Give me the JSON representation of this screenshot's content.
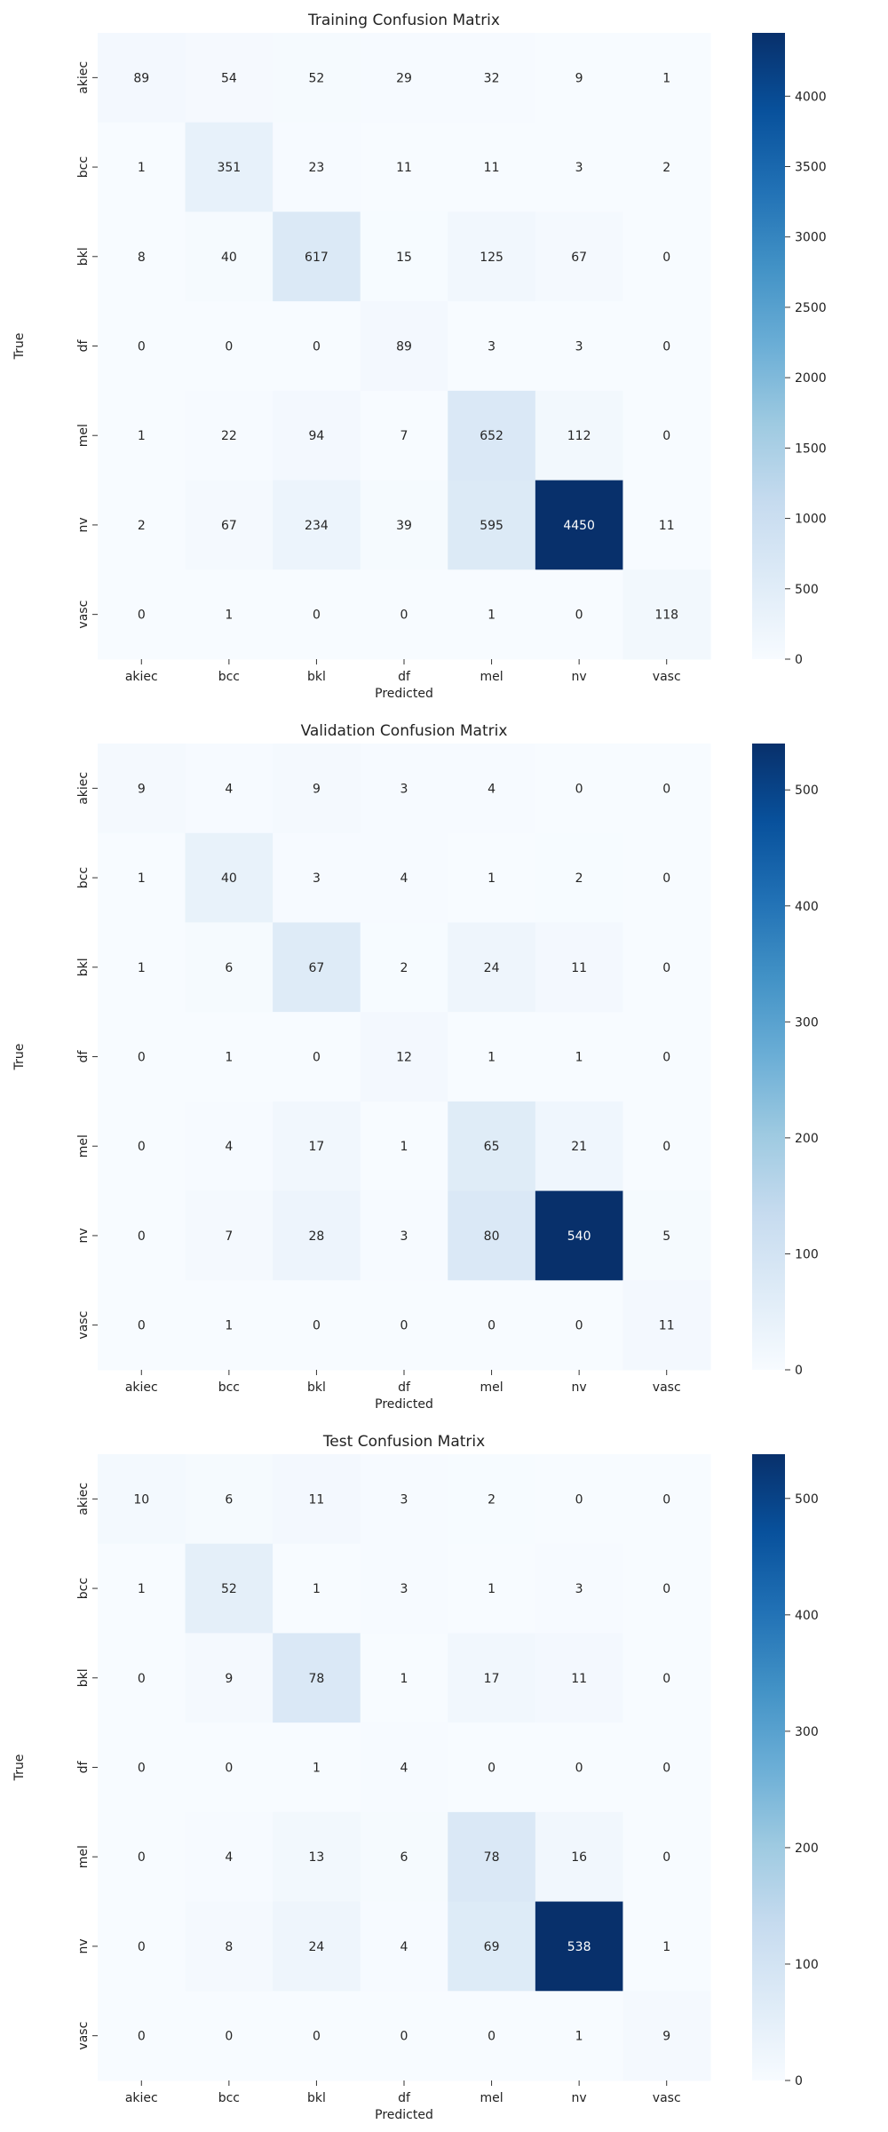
{
  "chart_data": [
    {
      "type": "heatmap",
      "title": "Training Confusion Matrix",
      "xlabel": "Predicted",
      "ylabel": "True",
      "x_categories": [
        "akiec",
        "bcc",
        "bkl",
        "df",
        "mel",
        "nv",
        "vasc"
      ],
      "y_categories": [
        "akiec",
        "bcc",
        "bkl",
        "df",
        "mel",
        "nv",
        "vasc"
      ],
      "values": [
        [
          89,
          54,
          52,
          29,
          32,
          9,
          1
        ],
        [
          1,
          351,
          23,
          11,
          11,
          3,
          2
        ],
        [
          8,
          40,
          617,
          15,
          125,
          67,
          0
        ],
        [
          0,
          0,
          0,
          89,
          3,
          3,
          0
        ],
        [
          1,
          22,
          94,
          7,
          652,
          112,
          0
        ],
        [
          2,
          67,
          234,
          39,
          595,
          4450,
          11
        ],
        [
          0,
          1,
          0,
          0,
          1,
          0,
          118
        ]
      ],
      "colorbar": {
        "min": 0,
        "max": 4450,
        "ticks": [
          0,
          500,
          1000,
          1500,
          2000,
          2500,
          3000,
          3500,
          4000
        ]
      },
      "colormap": [
        "#f7fbff",
        "#deebf7",
        "#c6dbef",
        "#9ecae1",
        "#6baed6",
        "#4292c6",
        "#2171b5",
        "#08519c",
        "#08306b"
      ]
    },
    {
      "type": "heatmap",
      "title": "Validation Confusion Matrix",
      "xlabel": "Predicted",
      "ylabel": "True",
      "x_categories": [
        "akiec",
        "bcc",
        "bkl",
        "df",
        "mel",
        "nv",
        "vasc"
      ],
      "y_categories": [
        "akiec",
        "bcc",
        "bkl",
        "df",
        "mel",
        "nv",
        "vasc"
      ],
      "values": [
        [
          9,
          4,
          9,
          3,
          4,
          0,
          0
        ],
        [
          1,
          40,
          3,
          4,
          1,
          2,
          0
        ],
        [
          1,
          6,
          67,
          2,
          24,
          11,
          0
        ],
        [
          0,
          1,
          0,
          12,
          1,
          1,
          0
        ],
        [
          0,
          4,
          17,
          1,
          65,
          21,
          0
        ],
        [
          0,
          7,
          28,
          3,
          80,
          540,
          5
        ],
        [
          0,
          1,
          0,
          0,
          0,
          0,
          11
        ]
      ],
      "colorbar": {
        "min": 0,
        "max": 540,
        "ticks": [
          0,
          100,
          200,
          300,
          400,
          500
        ]
      },
      "colormap": [
        "#f7fbff",
        "#deebf7",
        "#c6dbef",
        "#9ecae1",
        "#6baed6",
        "#4292c6",
        "#2171b5",
        "#08519c",
        "#08306b"
      ]
    },
    {
      "type": "heatmap",
      "title": "Test Confusion Matrix",
      "xlabel": "Predicted",
      "ylabel": "True",
      "x_categories": [
        "akiec",
        "bcc",
        "bkl",
        "df",
        "mel",
        "nv",
        "vasc"
      ],
      "y_categories": [
        "akiec",
        "bcc",
        "bkl",
        "df",
        "mel",
        "nv",
        "vasc"
      ],
      "values": [
        [
          10,
          6,
          11,
          3,
          2,
          0,
          0
        ],
        [
          1,
          52,
          1,
          3,
          1,
          3,
          0
        ],
        [
          0,
          9,
          78,
          1,
          17,
          11,
          0
        ],
        [
          0,
          0,
          1,
          4,
          0,
          0,
          0
        ],
        [
          0,
          4,
          13,
          6,
          78,
          16,
          0
        ],
        [
          0,
          8,
          24,
          4,
          69,
          538,
          1
        ],
        [
          0,
          0,
          0,
          0,
          0,
          1,
          9
        ]
      ],
      "colorbar": {
        "min": 0,
        "max": 538,
        "ticks": [
          0,
          100,
          200,
          300,
          400,
          500
        ]
      },
      "colormap": [
        "#f7fbff",
        "#deebf7",
        "#c6dbef",
        "#9ecae1",
        "#6baed6",
        "#4292c6",
        "#2171b5",
        "#08519c",
        "#08306b"
      ]
    }
  ]
}
